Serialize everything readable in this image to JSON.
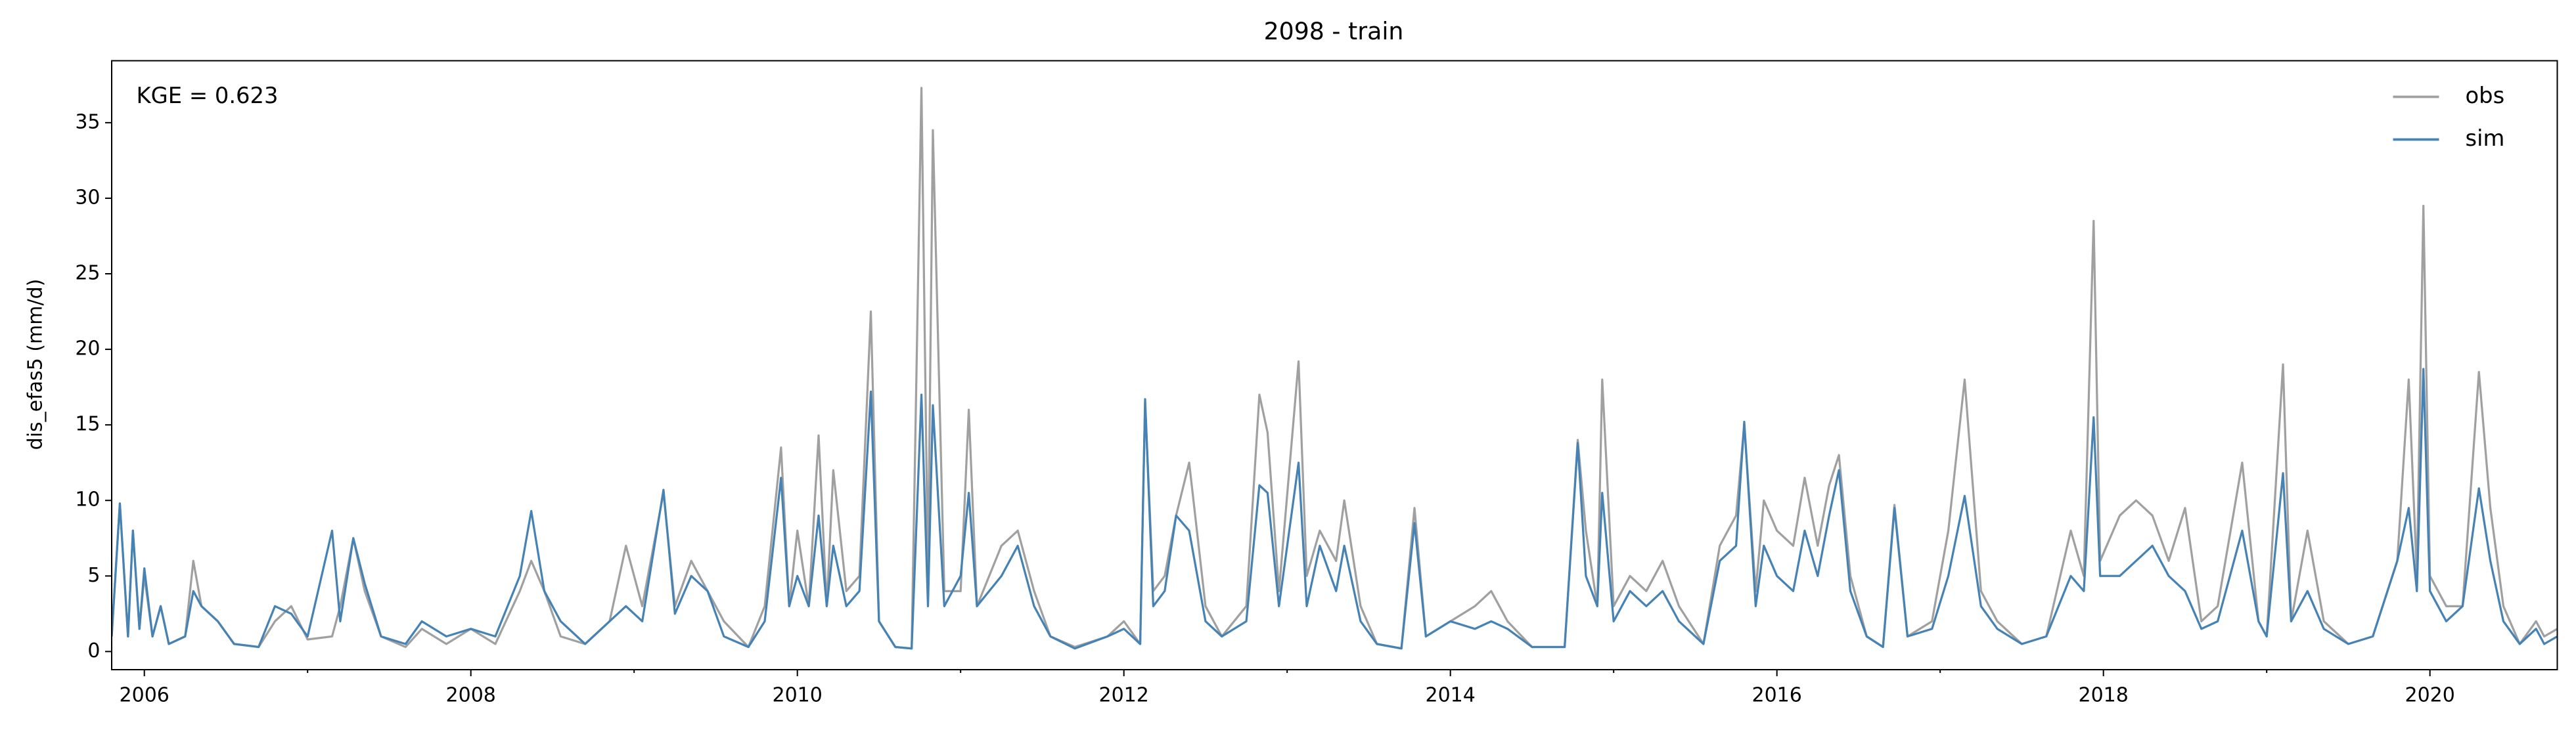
{
  "chart_data": {
    "type": "line",
    "title": "2098 - train",
    "ylabel": "dis_efas5 (mm/d)",
    "annotation": "KGE = 0.623",
    "legend": "upper right",
    "grid": false,
    "xlim": [
      2005.8,
      2020.78
    ],
    "xticks": [
      2006,
      2008,
      2010,
      2012,
      2014,
      2016,
      2018,
      2020
    ],
    "xminorticks": [
      2007,
      2009,
      2011,
      2013,
      2015,
      2017,
      2019
    ],
    "ylim": [
      -1.2,
      39.1
    ],
    "yticks": [
      0,
      5,
      10,
      15,
      20,
      25,
      30,
      35
    ],
    "x": [
      2005.8,
      2005.85,
      2005.9,
      2005.93,
      2005.97,
      2006.0,
      2006.05,
      2006.1,
      2006.15,
      2006.25,
      2006.3,
      2006.35,
      2006.45,
      2006.55,
      2006.7,
      2006.8,
      2006.9,
      2007.0,
      2007.15,
      2007.2,
      2007.28,
      2007.35,
      2007.45,
      2007.6,
      2007.7,
      2007.85,
      2008.0,
      2008.15,
      2008.3,
      2008.37,
      2008.45,
      2008.55,
      2008.7,
      2008.85,
      2008.95,
      2009.05,
      2009.18,
      2009.25,
      2009.35,
      2009.45,
      2009.55,
      2009.7,
      2009.8,
      2009.9,
      2009.95,
      2010.0,
      2010.07,
      2010.13,
      2010.18,
      2010.22,
      2010.3,
      2010.38,
      2010.45,
      2010.5,
      2010.6,
      2010.7,
      2010.76,
      2010.8,
      2010.83,
      2010.9,
      2011.0,
      2011.05,
      2011.1,
      2011.25,
      2011.35,
      2011.45,
      2011.55,
      2011.7,
      2011.9,
      2012.0,
      2012.1,
      2012.13,
      2012.18,
      2012.25,
      2012.32,
      2012.4,
      2012.5,
      2012.6,
      2012.75,
      2012.83,
      2012.88,
      2012.95,
      2013.07,
      2013.12,
      2013.2,
      2013.3,
      2013.35,
      2013.45,
      2013.55,
      2013.7,
      2013.78,
      2013.85,
      2014.0,
      2014.15,
      2014.25,
      2014.35,
      2014.5,
      2014.7,
      2014.78,
      2014.83,
      2014.9,
      2014.93,
      2015.0,
      2015.1,
      2015.2,
      2015.3,
      2015.4,
      2015.55,
      2015.65,
      2015.75,
      2015.8,
      2015.87,
      2015.92,
      2016.0,
      2016.1,
      2016.17,
      2016.25,
      2016.32,
      2016.38,
      2016.45,
      2016.55,
      2016.65,
      2016.72,
      2016.8,
      2016.95,
      2017.05,
      2017.15,
      2017.25,
      2017.35,
      2017.5,
      2017.65,
      2017.8,
      2017.88,
      2017.94,
      2017.98,
      2018.1,
      2018.2,
      2018.3,
      2018.4,
      2018.5,
      2018.6,
      2018.7,
      2018.85,
      2018.95,
      2019.0,
      2019.1,
      2019.15,
      2019.25,
      2019.35,
      2019.5,
      2019.65,
      2019.8,
      2019.87,
      2019.92,
      2019.96,
      2020.0,
      2020.1,
      2020.2,
      2020.3,
      2020.37,
      2020.45,
      2020.55,
      2020.65,
      2020.7,
      2020.78
    ],
    "series": [
      {
        "name": "obs",
        "color": "#a0a0a0",
        "values": [
          1,
          9.8,
          1,
          8,
          1.5,
          5,
          1,
          3,
          0.5,
          1,
          6,
          3,
          2,
          0.5,
          0.3,
          2,
          3,
          0.8,
          1,
          3,
          7.5,
          4,
          1,
          0.3,
          1.5,
          0.5,
          1.5,
          0.5,
          4,
          6,
          4,
          1,
          0.5,
          2,
          7,
          3,
          10.5,
          3,
          6,
          4,
          2,
          0.3,
          3,
          13.5,
          3,
          8,
          3,
          14.3,
          3,
          12,
          4,
          5,
          22.5,
          2,
          0.3,
          0.2,
          37.3,
          5,
          34.5,
          4,
          4,
          16,
          3,
          7,
          8,
          4,
          1,
          0.3,
          1,
          2,
          0.5,
          16.5,
          4,
          5,
          9,
          12.5,
          3,
          1,
          3,
          17,
          14.5,
          4,
          19.2,
          5,
          8,
          6,
          10,
          3,
          0.5,
          0.2,
          9.5,
          1,
          2,
          3,
          4,
          2,
          0.3,
          0.3,
          14,
          8,
          3,
          18,
          3,
          5,
          4,
          6,
          3,
          0.5,
          7,
          9,
          15,
          4,
          10,
          8,
          7,
          11.5,
          7,
          11,
          13,
          5,
          1,
          0.3,
          9.7,
          1,
          2,
          8,
          18,
          4,
          2,
          0.5,
          1,
          8,
          5,
          28.5,
          6,
          9,
          10,
          9,
          6,
          9.5,
          2,
          3,
          12.5,
          2,
          1,
          19,
          2,
          8,
          2,
          0.5,
          1,
          6,
          18,
          5,
          29.5,
          5,
          3,
          3,
          18.5,
          9.5,
          3,
          0.5,
          2,
          1,
          1.5
        ]
      },
      {
        "name": "sim",
        "color": "#4682b4",
        "values": [
          1,
          9.8,
          1,
          8,
          1.5,
          5.5,
          1,
          3,
          0.5,
          1,
          4,
          3,
          2,
          0.5,
          0.3,
          3,
          2.5,
          1,
          8,
          2,
          7.5,
          4.5,
          1,
          0.5,
          2,
          1,
          1.5,
          1,
          5,
          9.3,
          4,
          2,
          0.5,
          2,
          3,
          2,
          10.7,
          2.5,
          5,
          4,
          1,
          0.3,
          2,
          11.5,
          3,
          5,
          3,
          9,
          3,
          7,
          3,
          4,
          17.2,
          2,
          0.3,
          0.2,
          17,
          3,
          16.3,
          3,
          5,
          10.5,
          3,
          5,
          7,
          3,
          1,
          0.2,
          1,
          1.5,
          0.5,
          16.7,
          3,
          4,
          9,
          8,
          2,
          1,
          2,
          11,
          10.5,
          3,
          12.5,
          3,
          7,
          4,
          7,
          2,
          0.5,
          0.2,
          8.5,
          1,
          2,
          1.5,
          2,
          1.5,
          0.3,
          0.3,
          13.8,
          5,
          3,
          10.5,
          2,
          4,
          3,
          4,
          2,
          0.5,
          6,
          7,
          15.2,
          3,
          7,
          5,
          4,
          8,
          5,
          9,
          12,
          4,
          1,
          0.3,
          9.5,
          1,
          1.5,
          5,
          10.3,
          3,
          1.5,
          0.5,
          1,
          5,
          4,
          15.5,
          5,
          5,
          6,
          7,
          5,
          4,
          1.5,
          2,
          8,
          2,
          1,
          11.8,
          2,
          4,
          1.5,
          0.5,
          1,
          6,
          9.5,
          4,
          18.7,
          4,
          2,
          3,
          10.8,
          6,
          2,
          0.5,
          1.5,
          0.5,
          1
        ]
      }
    ]
  }
}
